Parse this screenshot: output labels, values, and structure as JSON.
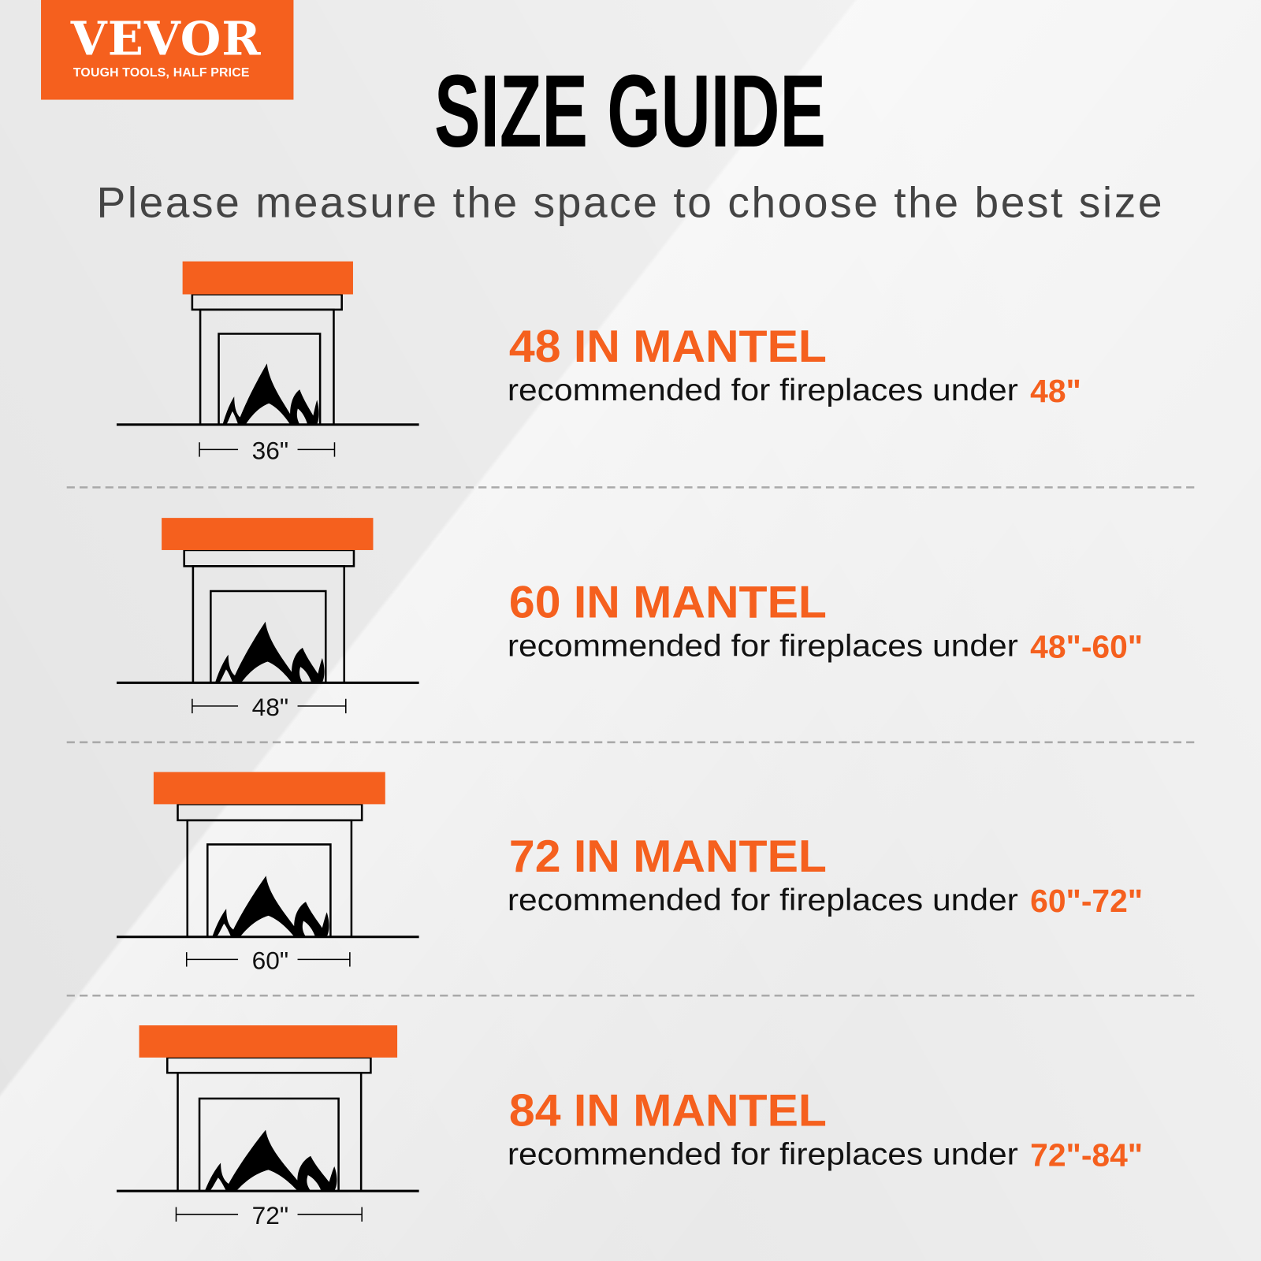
{
  "brand": {
    "name": "VEVOR",
    "tagline": "TOUGH TOOLS, HALF PRICE",
    "color": "#F5601E"
  },
  "header": {
    "title": "SIZE GUIDE",
    "subtitle": "Please measure the space to choose the best size"
  },
  "sizes": [
    {
      "title": "48 IN MANTEL",
      "text": "recommended for fireplaces under",
      "range": "48\"",
      "fireplace_width": "36\""
    },
    {
      "title": "60 IN MANTEL",
      "text": "recommended for fireplaces under",
      "range": "48\"-60\"",
      "fireplace_width": "48\""
    },
    {
      "title": "72 IN MANTEL",
      "text": "recommended for fireplaces under",
      "range": "60\"-72\"",
      "fireplace_width": "60\""
    },
    {
      "title": "84 IN MANTEL",
      "text": "recommended for fireplaces under",
      "range": "72\"-84\"",
      "fireplace_width": "72\""
    }
  ]
}
